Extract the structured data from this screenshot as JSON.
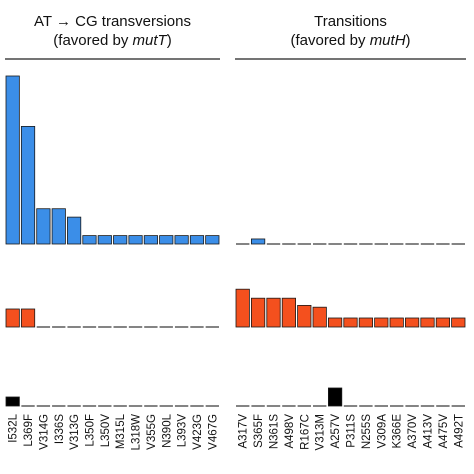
{
  "chart_data": [
    {
      "type": "bar",
      "panel": "left",
      "header_line1": "AT → CG transversions",
      "header_line2_prefix": "(favored by ",
      "header_line2_italic": "mutT",
      "header_line2_suffix": ")",
      "categories": [
        "I532L",
        "L369F",
        "V314G",
        "I336S",
        "V313G",
        "L350F",
        "L350V",
        "M315L",
        "L318W",
        "V355G",
        "N390L",
        "L393V",
        "V423G",
        "V467G"
      ],
      "series": [
        {
          "color": "#3b8ee8",
          "values": [
            10,
            7,
            2.1,
            2.1,
            1.6,
            0.5,
            0.5,
            0.5,
            0.5,
            0.5,
            0.5,
            0.5,
            0.5,
            0.5
          ]
        },
        {
          "color": "#f4501e",
          "values": [
            1,
            1,
            0,
            0,
            0,
            0,
            0,
            0,
            0,
            0,
            0,
            0,
            0,
            0
          ]
        },
        {
          "color": "#000000",
          "values": [
            0.5,
            0,
            0,
            0,
            0,
            0,
            0,
            0,
            0,
            0,
            0,
            0,
            0,
            0
          ]
        }
      ]
    },
    {
      "type": "bar",
      "panel": "right",
      "header_line1": "Transitions",
      "header_line2_prefix": "(favored by ",
      "header_line2_italic": "mutH",
      "header_line2_suffix": ")",
      "categories": [
        "A317V",
        "S365F",
        "N361S",
        "A498V",
        "R167C",
        "V313M",
        "A257V",
        "P311S",
        "N255S",
        "V309A",
        "K366E",
        "A370V",
        "A413V",
        "A475V",
        "A492T"
      ],
      "series": [
        {
          "color": "#3b8ee8",
          "values": [
            0,
            0.3,
            0,
            0,
            0,
            0,
            0,
            0,
            0,
            0,
            0,
            0,
            0,
            0,
            0
          ]
        },
        {
          "color": "#f4501e",
          "values": [
            2.1,
            1.6,
            1.6,
            1.6,
            1.2,
            1.1,
            0.5,
            0.5,
            0.5,
            0.5,
            0.5,
            0.5,
            0.5,
            0.5,
            0.5
          ]
        },
        {
          "color": "#000000",
          "values": [
            0,
            0,
            0,
            0,
            0,
            0,
            1,
            0,
            0,
            0,
            0,
            0,
            0,
            0,
            0
          ]
        }
      ]
    }
  ]
}
